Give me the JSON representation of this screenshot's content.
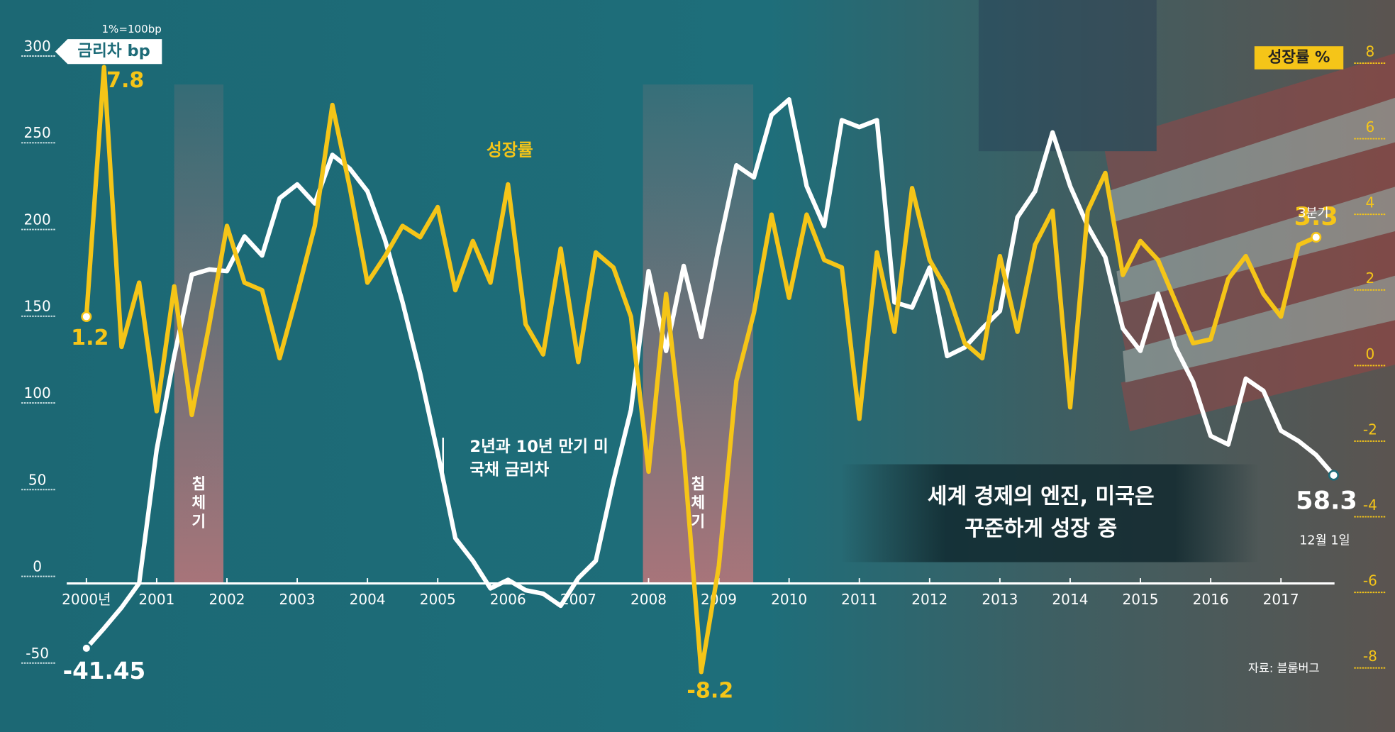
{
  "chart_data": {
    "type": "line",
    "title": "세계 경제의 엔진, 미국은 꾸준하게 성장 중",
    "y_label": "금리차 bp",
    "y_note": "1%=100bp",
    "y2_label": "성장률 %",
    "source": "자료: 블룸버그",
    "annotations": [
      "3분기",
      "12월 1일"
    ],
    "x": [
      2000,
      2000.25,
      2000.5,
      2000.75,
      2001,
      2001.25,
      2001.5,
      2001.75,
      2002,
      2002.25,
      2002.5,
      2002.75,
      2003,
      2003.25,
      2003.5,
      2003.75,
      2004,
      2004.25,
      2004.5,
      2004.75,
      2005,
      2005.25,
      2005.5,
      2005.75,
      2006,
      2006.25,
      2006.5,
      2006.75,
      2007,
      2007.25,
      2007.5,
      2007.75,
      2008,
      2008.25,
      2008.5,
      2008.75,
      2009,
      2009.25,
      2009.5,
      2009.75,
      2010,
      2010.25,
      2010.5,
      2010.75,
      2011,
      2011.25,
      2011.5,
      2011.75,
      2012,
      2012.25,
      2012.5,
      2012.75,
      2013,
      2013.25,
      2013.5,
      2013.75,
      2014,
      2014.25,
      2014.5,
      2014.75,
      2015,
      2015.25,
      2015.5,
      2015.75,
      2016,
      2016.25,
      2016.5,
      2016.75,
      2017,
      2017.25,
      2017.5,
      2017.75
    ],
    "xlim": [
      1999.72,
      2017.8
    ],
    "xticks": [
      {
        "value": 2000,
        "label": "2000년"
      },
      2001,
      2002,
      2003,
      2004,
      2005,
      2006,
      2007,
      2008,
      2009,
      2010,
      2011,
      2012,
      2013,
      2014,
      2015,
      2016,
      2017
    ],
    "ylim": [
      -50,
      300
    ],
    "yticks": [
      -50,
      0,
      50,
      100,
      150,
      200,
      250,
      300
    ],
    "y2lim": [
      -8,
      8
    ],
    "y2ticks": [
      -8,
      -6,
      -4,
      -2,
      0,
      2,
      4,
      6,
      8
    ],
    "series": [
      {
        "name": "2년과 10년 만기 미 국채 금리차",
        "color": "#ffffff",
        "values": [
          -41.45,
          -30,
          -18,
          -4,
          73,
          127,
          174,
          177,
          176,
          196,
          185,
          218,
          226,
          215,
          243,
          235,
          222,
          194,
          158,
          117,
          71,
          22,
          9,
          -7,
          -2,
          -8,
          -10,
          -17,
          -1,
          9,
          55,
          96,
          176,
          130,
          179,
          138,
          190,
          237,
          230,
          266,
          275,
          225,
          202,
          263,
          259,
          263,
          158,
          155,
          178,
          127,
          132,
          143,
          153,
          207,
          222,
          256,
          225,
          202,
          184,
          143,
          130,
          163,
          132,
          112,
          81,
          76,
          114,
          107,
          84,
          78,
          70,
          58.3
        ]
      },
      {
        "name": "성장률",
        "color": "#f5c518",
        "axis": "y2",
        "values": [
          1.2,
          7.8,
          0.4,
          2.1,
          -1.3,
          2.0,
          -1.4,
          1.0,
          3.6,
          2.1,
          1.9,
          0.1,
          1.8,
          3.6,
          6.8,
          4.6,
          2.1,
          2.8,
          3.6,
          3.3,
          4.1,
          1.9,
          3.2,
          2.1,
          4.7,
          1.0,
          0.2,
          3.0,
          0.0,
          2.9,
          2.5,
          1.2,
          -2.9,
          1.8,
          -2.4,
          -8.2,
          -5.4,
          -0.5,
          1.3,
          3.9,
          1.7,
          3.9,
          2.7,
          2.5,
          -1.5,
          2.9,
          0.8,
          4.6,
          2.7,
          1.9,
          0.5,
          0.1,
          2.8,
          0.8,
          3.1,
          4.0,
          -1.2,
          4.0,
          5.0,
          2.3,
          3.2,
          2.7,
          1.6,
          0.5,
          0.6,
          2.2,
          2.8,
          1.8,
          1.2,
          3.1,
          3.3,
          null
        ]
      }
    ],
    "recessions": [
      {
        "label": "침체기",
        "start": 2001.25,
        "end": 2001.95
      },
      {
        "label": "침체기",
        "start": 2007.92,
        "end": 2009.49
      }
    ]
  }
}
